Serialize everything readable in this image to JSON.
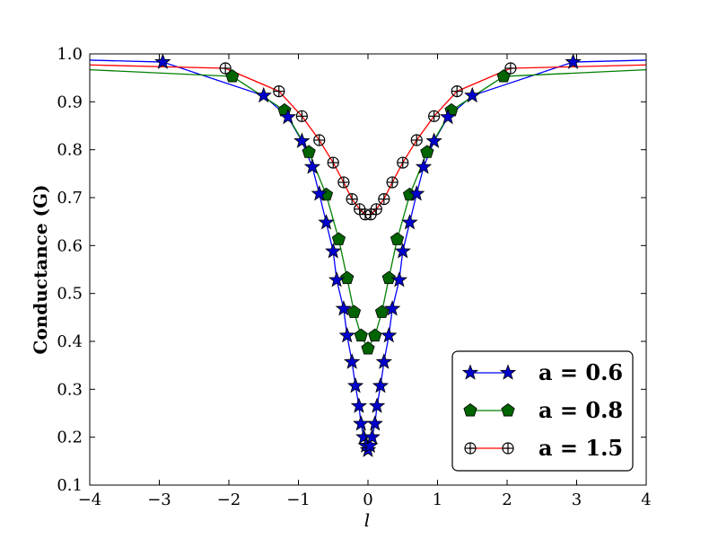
{
  "chart_data": {
    "type": "line",
    "title": "",
    "xlabel": "l",
    "ylabel": "Conductance (G)",
    "xlim": [
      -4,
      4
    ],
    "ylim": [
      0.1,
      1.0
    ],
    "xticks": [
      -4,
      -3,
      -2,
      -1,
      0,
      1,
      2,
      3,
      4
    ],
    "yticks": [
      0.1,
      0.2,
      0.3,
      0.4,
      0.5,
      0.6,
      0.7,
      0.8,
      0.9,
      1.0
    ],
    "xtick_labels": [
      "−4",
      "−3",
      "−2",
      "−1",
      "0",
      "1",
      "2",
      "3",
      "4"
    ],
    "ytick_labels": [
      "0.1",
      "0.2",
      "0.3",
      "0.4",
      "0.5",
      "0.6",
      "0.7",
      "0.8",
      "0.9",
      "1.0"
    ],
    "grid": false,
    "legend_position": "bottom-right",
    "series": [
      {
        "name": "a = 0.6",
        "color": "#0000ff",
        "marker": "star",
        "marker_color": "#0000cc",
        "x": [
          -4.0,
          -2.95,
          -1.5,
          -1.15,
          -0.95,
          -0.8,
          -0.7,
          -0.6,
          -0.5,
          -0.45,
          -0.35,
          -0.3,
          -0.23,
          -0.18,
          -0.13,
          -0.1,
          -0.06,
          -0.03,
          0.0,
          0.03,
          0.06,
          0.1,
          0.13,
          0.18,
          0.23,
          0.3,
          0.35,
          0.45,
          0.5,
          0.6,
          0.7,
          0.8,
          0.95,
          1.15,
          1.5,
          2.95,
          4.0
        ],
        "y": [
          0.987,
          0.983,
          0.913,
          0.868,
          0.818,
          0.764,
          0.708,
          0.648,
          0.588,
          0.528,
          0.468,
          0.412,
          0.357,
          0.307,
          0.265,
          0.228,
          0.2,
          0.182,
          0.173,
          0.182,
          0.2,
          0.228,
          0.265,
          0.307,
          0.357,
          0.412,
          0.468,
          0.528,
          0.588,
          0.648,
          0.708,
          0.764,
          0.818,
          0.868,
          0.913,
          0.983,
          0.987
        ]
      },
      {
        "name": "a = 0.8",
        "color": "#008000",
        "marker": "pentagon",
        "marker_color": "#006400",
        "x": [
          -4.0,
          -1.95,
          -1.2,
          -0.85,
          -0.6,
          -0.42,
          -0.3,
          -0.2,
          -0.1,
          0.0,
          0.1,
          0.2,
          0.3,
          0.42,
          0.6,
          0.85,
          1.2,
          1.95,
          4.0
        ],
        "y": [
          0.967,
          0.953,
          0.882,
          0.795,
          0.706,
          0.613,
          0.532,
          0.461,
          0.412,
          0.385,
          0.412,
          0.461,
          0.532,
          0.613,
          0.706,
          0.795,
          0.882,
          0.953,
          0.967
        ],
        "marker_skip_ends": true
      },
      {
        "name": "a = 1.5",
        "color": "#ff0000",
        "marker": "circle-plus",
        "marker_color": "#000000",
        "x": [
          -4.0,
          -2.05,
          -1.28,
          -0.95,
          -0.7,
          -0.5,
          -0.35,
          -0.23,
          -0.12,
          -0.04,
          0.04,
          0.12,
          0.23,
          0.35,
          0.5,
          0.7,
          0.95,
          1.28,
          2.05,
          4.0
        ],
        "y": [
          0.977,
          0.97,
          0.922,
          0.87,
          0.82,
          0.773,
          0.732,
          0.697,
          0.676,
          0.665,
          0.665,
          0.676,
          0.697,
          0.732,
          0.773,
          0.82,
          0.87,
          0.922,
          0.97,
          0.977
        ],
        "marker_skip_ends": true
      }
    ]
  }
}
